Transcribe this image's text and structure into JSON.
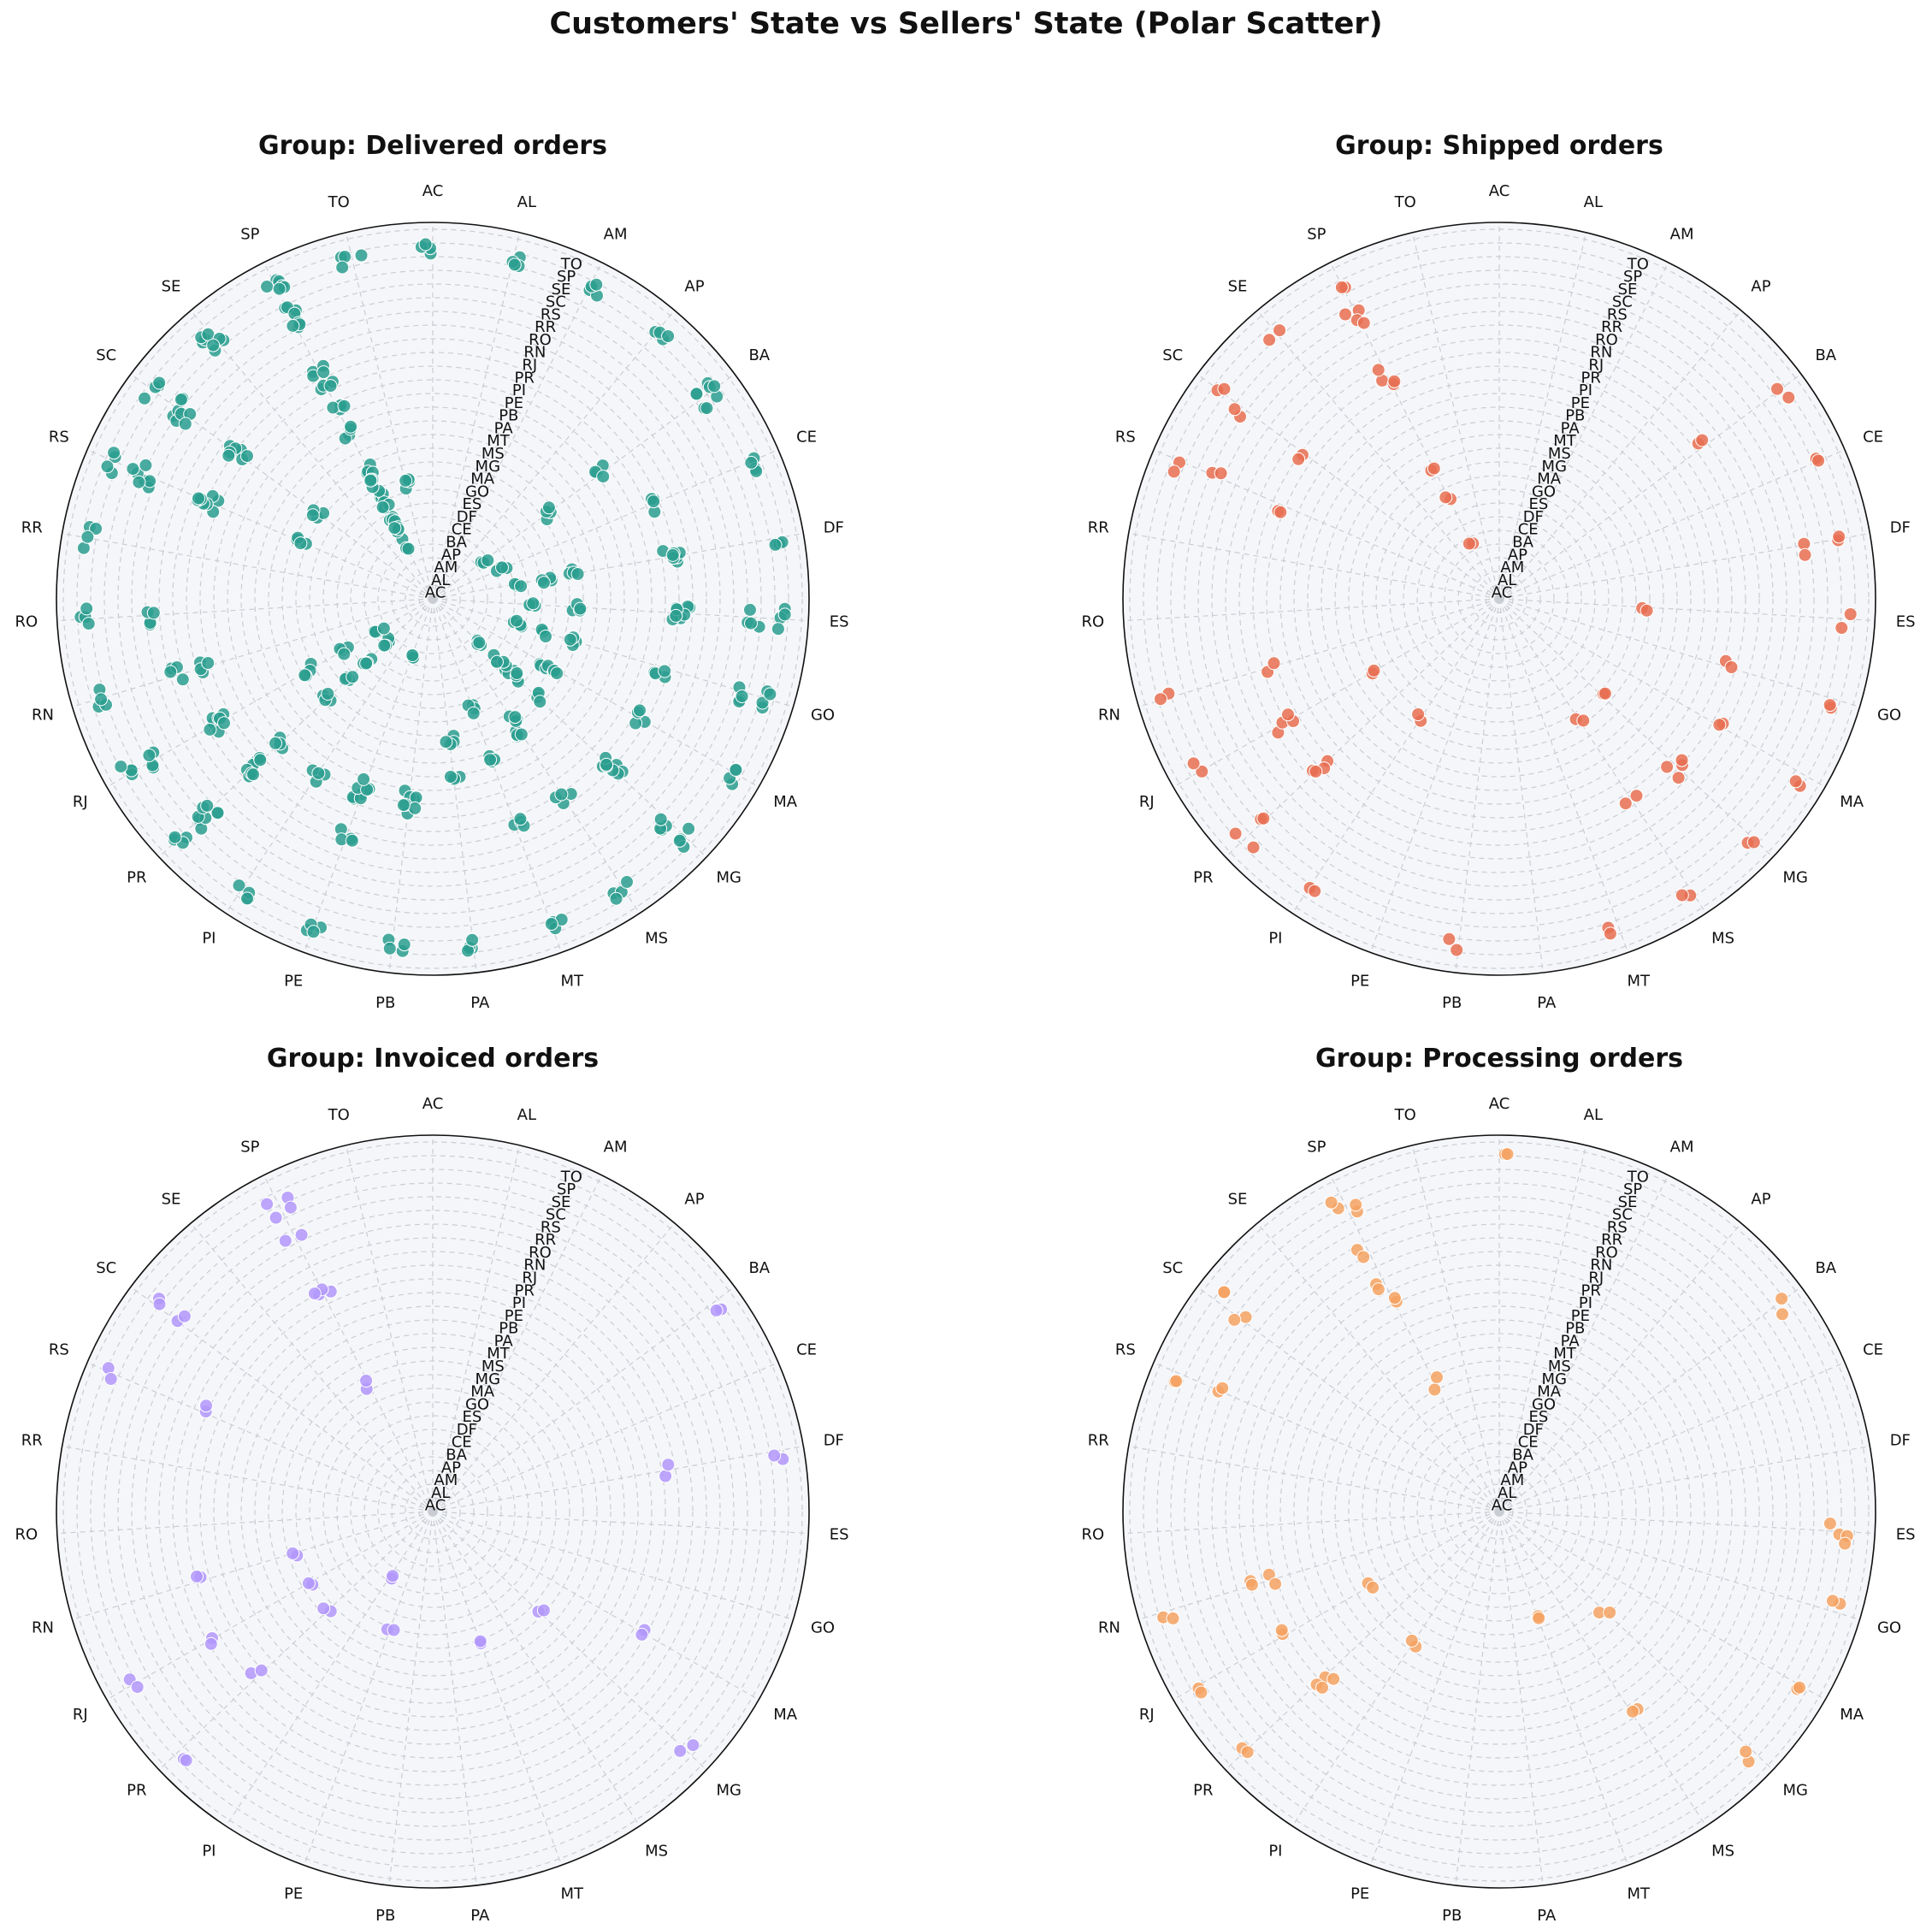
{
  "title": "Customers' State vs Sellers' State (Polar Scatter)",
  "colors": {
    "Delivered orders": "#2a9d8f",
    "Shipped orders": "#e76f51",
    "Invoiced orders": "#b197fc",
    "Processing orders": "#f4a261",
    "axes_background": "#f5f6f9",
    "grid": "#c9cdd3"
  },
  "chart_data": [
    {
      "type": "scatter",
      "projection": "polar",
      "title": "Group: Delivered orders",
      "angular_labels": [
        "AC",
        "AL",
        "AM",
        "AP",
        "BA",
        "CE",
        "DF",
        "ES",
        "GO",
        "MA",
        "MG",
        "MS",
        "MT",
        "PA",
        "PB",
        "PE",
        "PI",
        "PR",
        "RJ",
        "RN",
        "RO",
        "RR",
        "RS",
        "SC",
        "SE",
        "SP",
        "TO"
      ],
      "radial_labels": [
        "AC",
        "AL",
        "AM",
        "AP",
        "BA",
        "CE",
        "DF",
        "ES",
        "GO",
        "MA",
        "MG",
        "MS",
        "MT",
        "PA",
        "PB",
        "PE",
        "PI",
        "PR",
        "RJ",
        "RN",
        "RO",
        "RR",
        "RS",
        "SC",
        "SE",
        "SP",
        "TO"
      ],
      "grid": true,
      "points": [
        [
          "SP",
          "SP"
        ],
        [
          "SP",
          "SP"
        ],
        [
          "SP",
          "RJ"
        ],
        [
          "SP",
          "MG"
        ],
        [
          "SP",
          "PR"
        ],
        [
          "SP",
          "SC"
        ],
        [
          "SP",
          "RS"
        ],
        [
          "SP",
          "BA"
        ],
        [
          "SP",
          "GO"
        ],
        [
          "SP",
          "DF"
        ],
        [
          "SP",
          "ES"
        ],
        [
          "SP",
          "PE"
        ],
        [
          "SP",
          "CE"
        ],
        [
          "SP",
          "MA"
        ],
        [
          "SP",
          "PA"
        ],
        [
          "PR",
          "SP"
        ],
        [
          "PR",
          "PR"
        ],
        [
          "PR",
          "RJ"
        ],
        [
          "PR",
          "MG"
        ],
        [
          "PR",
          "SC"
        ],
        [
          "PR",
          "RS"
        ],
        [
          "PR",
          "BA"
        ],
        [
          "PR",
          "DF"
        ],
        [
          "PR",
          "GO"
        ],
        [
          "PR",
          "PE"
        ],
        [
          "RJ",
          "SP"
        ],
        [
          "RJ",
          "RJ"
        ],
        [
          "RJ",
          "MG"
        ],
        [
          "RJ",
          "PR"
        ],
        [
          "RJ",
          "ES"
        ],
        [
          "RJ",
          "BA"
        ],
        [
          "RJ",
          "SC"
        ],
        [
          "MG",
          "SP"
        ],
        [
          "MG",
          "MG"
        ],
        [
          "MG",
          "RJ"
        ],
        [
          "MG",
          "PR"
        ],
        [
          "MG",
          "ES"
        ],
        [
          "MG",
          "BA"
        ],
        [
          "MG",
          "GO"
        ],
        [
          "MG",
          "DF"
        ],
        [
          "MG",
          "SC"
        ],
        [
          "SC",
          "SP"
        ],
        [
          "SC",
          "SC"
        ],
        [
          "SC",
          "PR"
        ],
        [
          "SC",
          "RS"
        ],
        [
          "SC",
          "RJ"
        ],
        [
          "SC",
          "MG"
        ],
        [
          "RS",
          "SP"
        ],
        [
          "RS",
          "RS"
        ],
        [
          "RS",
          "SC"
        ],
        [
          "RS",
          "PR"
        ],
        [
          "RS",
          "RJ"
        ],
        [
          "RS",
          "MG"
        ],
        [
          "BA",
          "SP"
        ],
        [
          "BA",
          "BA"
        ],
        [
          "BA",
          "MG"
        ],
        [
          "BA",
          "PE"
        ],
        [
          "BA",
          "SE"
        ],
        [
          "DF",
          "SP"
        ],
        [
          "DF",
          "DF"
        ],
        [
          "DF",
          "GO"
        ],
        [
          "DF",
          "MG"
        ],
        [
          "DF",
          "RJ"
        ],
        [
          "DF",
          "PR"
        ],
        [
          "ES",
          "SP"
        ],
        [
          "ES",
          "ES"
        ],
        [
          "ES",
          "MG"
        ],
        [
          "ES",
          "RJ"
        ],
        [
          "ES",
          "PR"
        ],
        [
          "ES",
          "SC"
        ],
        [
          "GO",
          "SP"
        ],
        [
          "GO",
          "GO"
        ],
        [
          "GO",
          "DF"
        ],
        [
          "GO",
          "MG"
        ],
        [
          "GO",
          "PR"
        ],
        [
          "GO",
          "SC"
        ],
        [
          "PE",
          "SP"
        ],
        [
          "PE",
          "PE"
        ],
        [
          "PE",
          "PB"
        ],
        [
          "PE",
          "BA"
        ],
        [
          "PE",
          "RJ"
        ],
        [
          "MA",
          "SP"
        ],
        [
          "MA",
          "MA"
        ],
        [
          "MA",
          "PR"
        ],
        [
          "MA",
          "MG"
        ],
        [
          "MS",
          "SP"
        ],
        [
          "MS",
          "MS"
        ],
        [
          "MS",
          "PR"
        ],
        [
          "MS",
          "MG"
        ],
        [
          "MT",
          "SP"
        ],
        [
          "MT",
          "MT"
        ],
        [
          "MT",
          "GO"
        ],
        [
          "MT",
          "PR"
        ],
        [
          "PB",
          "SP"
        ],
        [
          "PB",
          "PB"
        ],
        [
          "PB",
          "PE"
        ],
        [
          "PA",
          "SP"
        ],
        [
          "PA",
          "PA"
        ],
        [
          "PA",
          "MG"
        ],
        [
          "PI",
          "SP"
        ],
        [
          "PI",
          "PE"
        ],
        [
          "CE",
          "SP"
        ],
        [
          "CE",
          "CE"
        ],
        [
          "CE",
          "PR"
        ],
        [
          "RN",
          "SP"
        ],
        [
          "RN",
          "RN"
        ],
        [
          "RN",
          "PR"
        ],
        [
          "RO",
          "SP"
        ],
        [
          "RO",
          "RO"
        ],
        [
          "SE",
          "SP"
        ],
        [
          "SE",
          "SE"
        ],
        [
          "TO",
          "SP"
        ],
        [
          "TO",
          "GO"
        ],
        [
          "AL",
          "SP"
        ],
        [
          "AM",
          "SP"
        ],
        [
          "AP",
          "SP"
        ],
        [
          "AC",
          "SP"
        ],
        [
          "RR",
          "SP"
        ]
      ]
    },
    {
      "type": "scatter",
      "projection": "polar",
      "title": "Group: Shipped orders",
      "angular_labels": [
        "AC",
        "AL",
        "AM",
        "AP",
        "BA",
        "CE",
        "DF",
        "ES",
        "GO",
        "MA",
        "MG",
        "MS",
        "MT",
        "PA",
        "PB",
        "PE",
        "PI",
        "PR",
        "RJ",
        "RN",
        "RO",
        "RR",
        "RS",
        "SC",
        "SE",
        "SP",
        "TO"
      ],
      "radial_labels": [
        "AC",
        "AL",
        "AM",
        "AP",
        "BA",
        "CE",
        "DF",
        "ES",
        "GO",
        "MA",
        "MG",
        "MS",
        "MT",
        "PA",
        "PB",
        "PE",
        "PI",
        "PR",
        "RJ",
        "RN",
        "RO",
        "RR",
        "RS",
        "SC",
        "SE",
        "SP",
        "TO"
      ],
      "grid": true,
      "points": [
        [
          "SP",
          "SP"
        ],
        [
          "SP",
          "RJ"
        ],
        [
          "SP",
          "MG"
        ],
        [
          "SP",
          "PR"
        ],
        [
          "SP",
          "SC"
        ],
        [
          "SP",
          "RS"
        ],
        [
          "SP",
          "GO"
        ],
        [
          "SP",
          "BA"
        ],
        [
          "PR",
          "SP"
        ],
        [
          "PR",
          "PR"
        ],
        [
          "PR",
          "RJ"
        ],
        [
          "PR",
          "SC"
        ],
        [
          "RJ",
          "SP"
        ],
        [
          "RJ",
          "RJ"
        ],
        [
          "RJ",
          "MG"
        ],
        [
          "RJ",
          "PR"
        ],
        [
          "MG",
          "SP"
        ],
        [
          "MG",
          "MG"
        ],
        [
          "MG",
          "RJ"
        ],
        [
          "MG",
          "PR"
        ],
        [
          "MS",
          "SP"
        ],
        [
          "MS",
          "PR"
        ],
        [
          "MS",
          "MG"
        ],
        [
          "SC",
          "SP"
        ],
        [
          "SC",
          "SC"
        ],
        [
          "SC",
          "PR"
        ],
        [
          "RS",
          "SP"
        ],
        [
          "RS",
          "PR"
        ],
        [
          "RS",
          "RS"
        ],
        [
          "RN",
          "SP"
        ],
        [
          "RN",
          "PR"
        ],
        [
          "PI",
          "SP"
        ],
        [
          "PI",
          "MG"
        ],
        [
          "MA",
          "SP"
        ],
        [
          "MA",
          "RJ"
        ],
        [
          "GO",
          "SP"
        ],
        [
          "GO",
          "PR"
        ],
        [
          "ES",
          "SP"
        ],
        [
          "ES",
          "MG"
        ],
        [
          "DF",
          "SP"
        ],
        [
          "DF",
          "RS"
        ],
        [
          "CE",
          "SP"
        ],
        [
          "BA",
          "SP"
        ],
        [
          "BA",
          "RJ"
        ],
        [
          "PB",
          "SP"
        ],
        [
          "MT",
          "SP"
        ],
        [
          "SE",
          "SP"
        ]
      ]
    },
    {
      "type": "scatter",
      "projection": "polar",
      "title": "Group: Invoiced orders",
      "angular_labels": [
        "AC",
        "AL",
        "AM",
        "AP",
        "BA",
        "CE",
        "DF",
        "ES",
        "GO",
        "MA",
        "MG",
        "MS",
        "MT",
        "PA",
        "PB",
        "PE",
        "PI",
        "PR",
        "RJ",
        "RN",
        "RO",
        "RR",
        "RS",
        "SC",
        "SE",
        "SP",
        "TO"
      ],
      "radial_labels": [
        "AC",
        "AL",
        "AM",
        "AP",
        "BA",
        "CE",
        "DF",
        "ES",
        "GO",
        "MA",
        "MG",
        "MS",
        "MT",
        "PA",
        "PB",
        "PE",
        "PI",
        "PR",
        "RJ",
        "RN",
        "RO",
        "RR",
        "RS",
        "SC",
        "SE",
        "SP",
        "TO"
      ],
      "grid": true,
      "points": [
        [
          "SP",
          "SP"
        ],
        [
          "SP",
          "SE"
        ],
        [
          "SP",
          "RS"
        ],
        [
          "SP",
          "PR"
        ],
        [
          "SP",
          "RJ"
        ],
        [
          "SP",
          "MG"
        ],
        [
          "PR",
          "SP"
        ],
        [
          "PR",
          "PR"
        ],
        [
          "PR",
          "MG"
        ],
        [
          "RJ",
          "SP"
        ],
        [
          "RJ",
          "RJ"
        ],
        [
          "RJ",
          "MG"
        ],
        [
          "MG",
          "SP"
        ],
        [
          "MG",
          "MG"
        ],
        [
          "SC",
          "SP"
        ],
        [
          "SC",
          "SC"
        ],
        [
          "RS",
          "SP"
        ],
        [
          "RS",
          "RJ"
        ],
        [
          "RN",
          "PR"
        ],
        [
          "RN",
          "MG"
        ],
        [
          "MA",
          "PR"
        ],
        [
          "MT",
          "MG"
        ],
        [
          "DF",
          "SP"
        ],
        [
          "DF",
          "PR"
        ],
        [
          "BA",
          "SP"
        ],
        [
          "PE",
          "MA"
        ],
        [
          "PI",
          "CE"
        ]
      ]
    },
    {
      "type": "scatter",
      "projection": "polar",
      "title": "Group: Processing orders",
      "angular_labels": [
        "AC",
        "AL",
        "AM",
        "AP",
        "BA",
        "CE",
        "DF",
        "ES",
        "GO",
        "MA",
        "MG",
        "MS",
        "MT",
        "PA",
        "PB",
        "PE",
        "PI",
        "PR",
        "RJ",
        "RN",
        "RO",
        "RR",
        "RS",
        "SC",
        "SE",
        "SP",
        "TO"
      ],
      "radial_labels": [
        "AC",
        "AL",
        "AM",
        "AP",
        "BA",
        "CE",
        "DF",
        "ES",
        "GO",
        "MA",
        "MG",
        "MS",
        "MT",
        "PA",
        "PB",
        "PE",
        "PI",
        "PR",
        "RJ",
        "RN",
        "RO",
        "RR",
        "RS",
        "SC",
        "SE",
        "SP",
        "TO"
      ],
      "grid": true,
      "points": [
        [
          "SP",
          "SP"
        ],
        [
          "SP",
          "SE"
        ],
        [
          "SP",
          "RR"
        ],
        [
          "SP",
          "PR"
        ],
        [
          "SP",
          "RJ"
        ],
        [
          "SP",
          "MG"
        ],
        [
          "PR",
          "SP"
        ],
        [
          "PR",
          "PR"
        ],
        [
          "PR",
          "RJ"
        ],
        [
          "RJ",
          "SP"
        ],
        [
          "RJ",
          "RJ"
        ],
        [
          "RJ",
          "MG"
        ],
        [
          "RN",
          "SP"
        ],
        [
          "RN",
          "RJ"
        ],
        [
          "RN",
          "PR"
        ],
        [
          "MG",
          "SP"
        ],
        [
          "MG",
          "MG"
        ],
        [
          "SC",
          "SP"
        ],
        [
          "SC",
          "SC"
        ],
        [
          "RS",
          "SP"
        ],
        [
          "RS",
          "RS"
        ],
        [
          "MA",
          "SP"
        ],
        [
          "MS",
          "PR"
        ],
        [
          "MT",
          "GO"
        ],
        [
          "ES",
          "SE"
        ],
        [
          "ES",
          "SP"
        ],
        [
          "GO",
          "SP"
        ],
        [
          "BA",
          "SP"
        ],
        [
          "AC",
          "TO"
        ],
        [
          "PI",
          "MS"
        ]
      ]
    }
  ]
}
